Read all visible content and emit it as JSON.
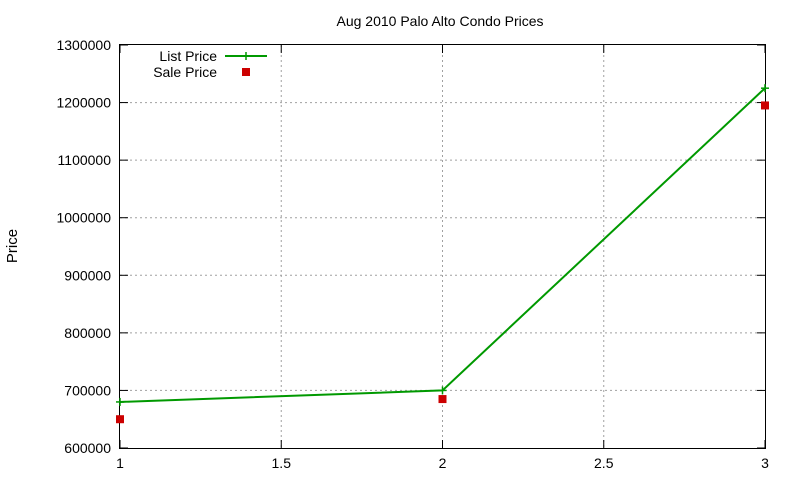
{
  "chart_data": {
    "type": "scatter",
    "title": "Aug 2010 Palo Alto Condo Prices",
    "xlabel": "",
    "ylabel": "Price",
    "xlim": [
      1,
      3
    ],
    "ylim": [
      600000,
      1300000
    ],
    "xticks": [
      "1",
      "1.5",
      "2",
      "2.5",
      "3"
    ],
    "xtick_values": [
      1,
      1.5,
      2,
      2.5,
      3
    ],
    "yticks": [
      "600000",
      "700000",
      "800000",
      "900000",
      "1000000",
      "1100000",
      "1200000",
      "1300000"
    ],
    "ytick_values": [
      600000,
      700000,
      800000,
      900000,
      1000000,
      1100000,
      1200000,
      1300000
    ],
    "grid": true,
    "legend_position": "top-left",
    "series": [
      {
        "name": "List Price",
        "style": "linespoints",
        "marker": "plus",
        "color": "#009900",
        "x": [
          1,
          2,
          3
        ],
        "y": [
          680000,
          700000,
          1225000
        ]
      },
      {
        "name": "Sale Price",
        "style": "points",
        "marker": "square",
        "color": "#cc0000",
        "x": [
          1,
          2,
          3
        ],
        "y": [
          650000,
          685000,
          1195000
        ]
      }
    ]
  }
}
